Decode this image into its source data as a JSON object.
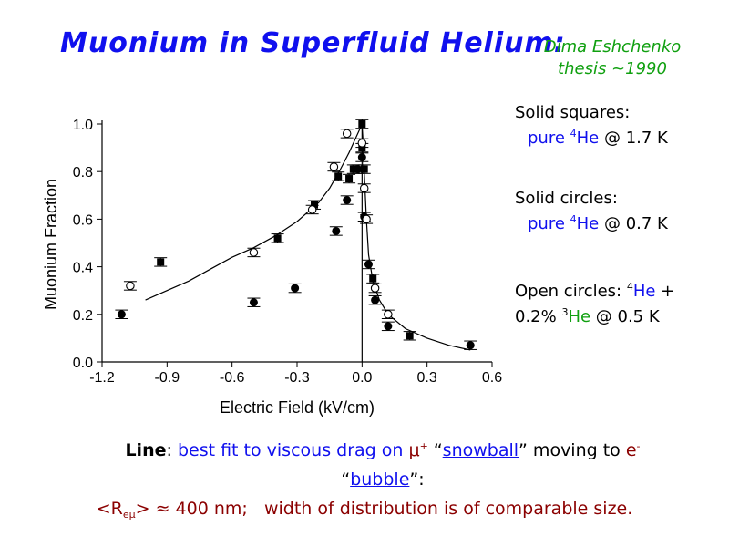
{
  "title": "Muonium in Superfluid Helium:",
  "credit": {
    "line1": "Dima Eshchenko",
    "line2": "thesis ~1990"
  },
  "legend": {
    "squares_heading": "Solid squares:",
    "squares_desc_a": "pure ",
    "squares_sup": "4",
    "squares_desc_b": "He",
    "squares_desc_c": " @ 1.7 K",
    "circles_heading": "Solid circles:",
    "circles_desc_a": "pure ",
    "circles_sup": "4",
    "circles_desc_b": "He",
    "circles_desc_c": " @ 0.7 K",
    "open_a": "Open circles: ",
    "open_sup1": "4",
    "open_he1": "He",
    "open_b": " +",
    "open_c": "0.2% ",
    "open_sup2": "3",
    "open_he2": "He",
    "open_d": " @ 0.5 K"
  },
  "caption": {
    "line_label": "Line",
    "colon": ": ",
    "text_a": "best fit to viscous drag on ",
    "mu": "μ",
    "mu_sup": "+",
    "text_b": " “",
    "snowball": "snowball",
    "text_c": "” moving to ",
    "e": "e",
    "e_sup": "-",
    "text_d": "“",
    "bubble": "bubble",
    "text_e": "”:",
    "r_open": "<R",
    "r_sub": "eμ",
    "r_close": ">",
    "approx": " ≈ 400 nm;",
    "width_text": "width of distribution is of comparable size."
  },
  "colors": {
    "title": "#1010ee",
    "credit": "#10a010",
    "blue_text": "#1010ee",
    "green_text": "#10a010",
    "dark_text": "#8b0000"
  },
  "chart_data": {
    "type": "scatter",
    "xlabel": "Electric Field (kV/cm)",
    "ylabel": "Muonium Fraction",
    "xlim": [
      -1.2,
      0.6
    ],
    "ylim": [
      0.0,
      1.0
    ],
    "x_ticks": [
      "-1.2",
      "-0.9",
      "-0.6",
      "-0.3",
      "0.0",
      "0.3",
      "0.6"
    ],
    "y_ticks": [
      "0.0",
      "0.2",
      "0.4",
      "0.6",
      "0.8",
      "1.0"
    ],
    "series": [
      {
        "marker": "square-filled",
        "points": [
          [
            -0.93,
            0.42
          ],
          [
            -0.39,
            0.52
          ],
          [
            -0.22,
            0.66
          ],
          [
            -0.11,
            0.78
          ],
          [
            -0.06,
            0.77
          ],
          [
            -0.04,
            0.81
          ],
          [
            0.0,
            1.0
          ],
          [
            0.0,
            0.9
          ],
          [
            0.01,
            0.81
          ],
          [
            0.05,
            0.35
          ],
          [
            0.22,
            0.11
          ]
        ]
      },
      {
        "marker": "circle-filled",
        "points": [
          [
            -1.11,
            0.2
          ],
          [
            -0.5,
            0.25
          ],
          [
            -0.31,
            0.31
          ],
          [
            -0.12,
            0.55
          ],
          [
            -0.07,
            0.68
          ],
          [
            -0.02,
            0.81
          ],
          [
            0.0,
            0.86
          ],
          [
            0.01,
            0.61
          ],
          [
            0.03,
            0.41
          ],
          [
            0.06,
            0.26
          ],
          [
            0.12,
            0.15
          ],
          [
            0.5,
            0.07
          ]
        ]
      },
      {
        "marker": "circle-open",
        "points": [
          [
            -1.07,
            0.32
          ],
          [
            -0.5,
            0.46
          ],
          [
            -0.23,
            0.64
          ],
          [
            -0.13,
            0.82
          ],
          [
            -0.07,
            0.96
          ],
          [
            0.0,
            0.92
          ],
          [
            0.01,
            0.73
          ],
          [
            0.02,
            0.6
          ],
          [
            0.06,
            0.31
          ],
          [
            0.12,
            0.2
          ]
        ]
      }
    ],
    "fit_line": {
      "points": [
        [
          -1.0,
          0.26
        ],
        [
          -0.9,
          0.3
        ],
        [
          -0.8,
          0.34
        ],
        [
          -0.7,
          0.39
        ],
        [
          -0.6,
          0.44
        ],
        [
          -0.5,
          0.48
        ],
        [
          -0.4,
          0.53
        ],
        [
          -0.3,
          0.59
        ],
        [
          -0.2,
          0.67
        ],
        [
          -0.15,
          0.73
        ],
        [
          -0.1,
          0.81
        ],
        [
          -0.06,
          0.88
        ],
        [
          -0.03,
          0.94
        ],
        [
          -0.01,
          0.98
        ],
        [
          0.0,
          1.0
        ],
        [
          0.005,
          0.92
        ],
        [
          0.01,
          0.8
        ],
        [
          0.02,
          0.6
        ],
        [
          0.03,
          0.45
        ],
        [
          0.05,
          0.34
        ],
        [
          0.08,
          0.26
        ],
        [
          0.12,
          0.2
        ],
        [
          0.2,
          0.14
        ],
        [
          0.3,
          0.1
        ],
        [
          0.4,
          0.07
        ],
        [
          0.5,
          0.05
        ]
      ]
    }
  }
}
